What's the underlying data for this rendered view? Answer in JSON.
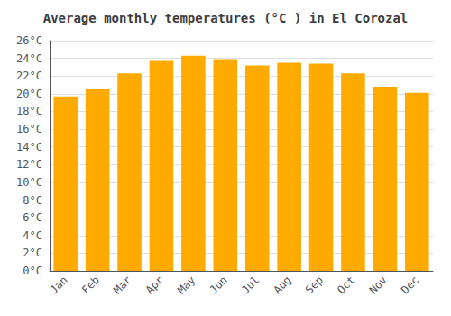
{
  "chart_data": {
    "type": "bar",
    "title": "Average monthly temperatures (°C ) in El Corozal",
    "categories": [
      "Jan",
      "Feb",
      "Mar",
      "Apr",
      "May",
      "Jun",
      "Jul",
      "Aug",
      "Sep",
      "Oct",
      "Nov",
      "Dec"
    ],
    "values": [
      19.7,
      20.5,
      22.3,
      23.7,
      24.3,
      23.9,
      23.2,
      23.5,
      23.4,
      22.3,
      20.8,
      20.1
    ],
    "color": "#FFAA00",
    "ylim": [
      0,
      26
    ],
    "yticks": [
      {
        "value": 0,
        "label": "0°C"
      },
      {
        "value": 2,
        "label": "2°C"
      },
      {
        "value": 4,
        "label": "4°C"
      },
      {
        "value": 6,
        "label": "6°C"
      },
      {
        "value": 8,
        "label": "8°C"
      },
      {
        "value": 10,
        "label": "10°C"
      },
      {
        "value": 12,
        "label": "12°C"
      },
      {
        "value": 14,
        "label": "14°C"
      },
      {
        "value": 16,
        "label": "16°C"
      },
      {
        "value": 18,
        "label": "18°C"
      },
      {
        "value": 20,
        "label": "20°C"
      },
      {
        "value": 22,
        "label": "22°C"
      },
      {
        "value": 24,
        "label": "24°C"
      },
      {
        "value": 26,
        "label": "26°C"
      }
    ],
    "grid": true
  }
}
